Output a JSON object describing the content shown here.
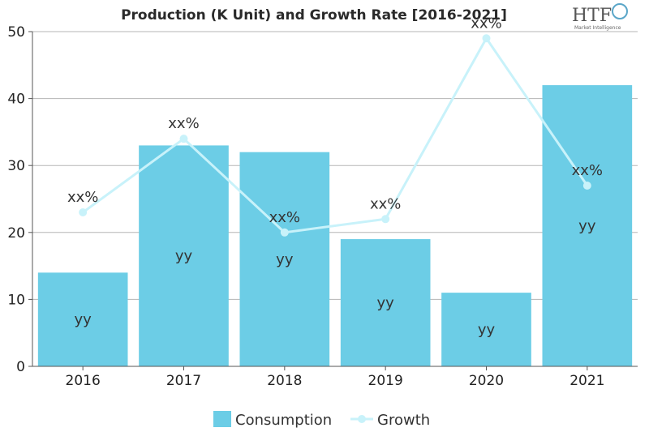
{
  "logo": {
    "text": "HTF",
    "subtext": "Market Intelligence"
  },
  "chart_data": {
    "type": "bar",
    "title": "Production (K Unit) and Growth Rate [2016-2021]",
    "categories": [
      "2016",
      "2017",
      "2018",
      "2019",
      "2020",
      "2021"
    ],
    "ylim": [
      0,
      50
    ],
    "yticks": [
      0,
      10,
      20,
      30,
      40,
      50
    ],
    "grid": true,
    "legend_position": "bottom",
    "series": [
      {
        "name": "Consumption",
        "kind": "bar",
        "color": "#6ccde6",
        "values": [
          14,
          33,
          32,
          19,
          11,
          42
        ],
        "labels": [
          "yy",
          "yy",
          "yy",
          "yy",
          "yy",
          "yy"
        ]
      },
      {
        "name": "Growth",
        "kind": "line",
        "color": "#c8f2fa",
        "values": [
          23,
          34,
          20,
          22,
          49,
          27
        ],
        "labels": [
          "xx%",
          "xx%",
          "xx%",
          "xx%",
          "xx%",
          "xx%"
        ]
      }
    ]
  }
}
